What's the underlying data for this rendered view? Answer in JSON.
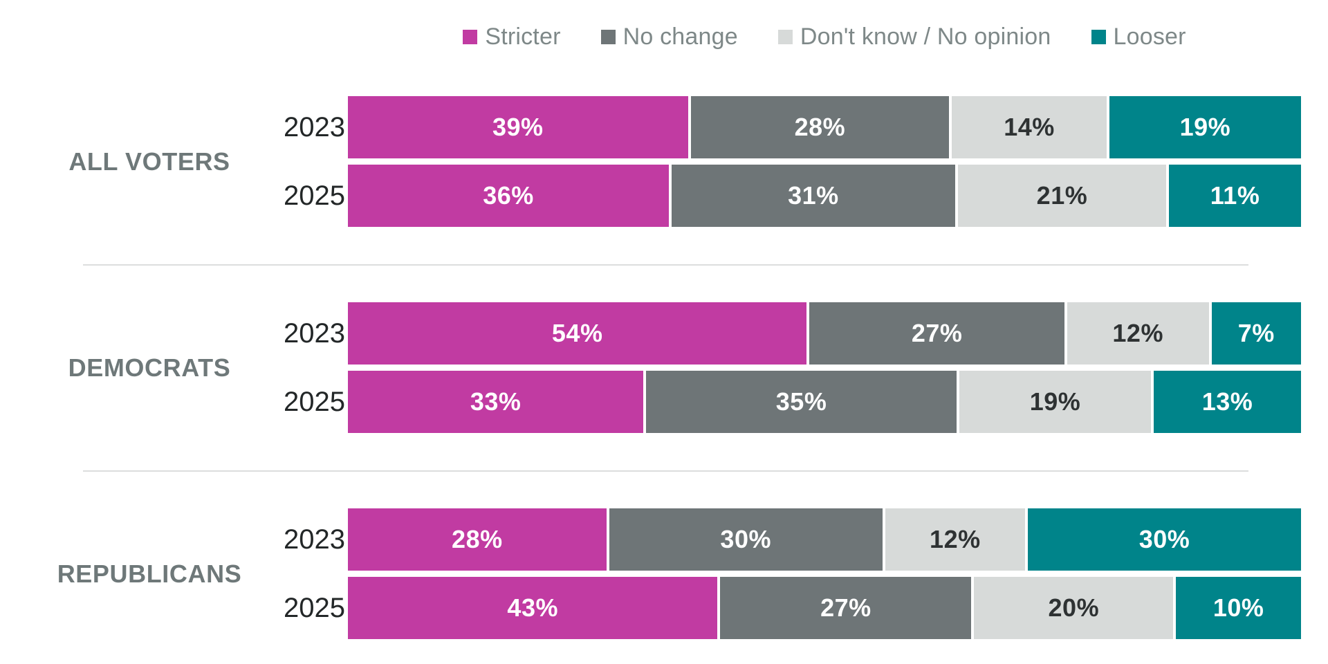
{
  "legend": {
    "items": [
      {
        "label": "Stricter",
        "color": "#c13ba2"
      },
      {
        "label": "No change",
        "color": "#6e7577"
      },
      {
        "label": "Don't know / No opinion",
        "color": "#d7dad9"
      },
      {
        "label": "Looser",
        "color": "#00848a"
      }
    ]
  },
  "chart_data": {
    "type": "bar",
    "orientation": "horizontal",
    "stacked": true,
    "unit": "percent",
    "legend_position": "top",
    "series_names": [
      "Stricter",
      "No change",
      "Don't know / No opinion",
      "Looser"
    ],
    "series_colors": [
      "#c13ba2",
      "#6e7577",
      "#d7dad9",
      "#00848a"
    ],
    "groups": [
      {
        "label": "ALL VOTERS",
        "rows": [
          {
            "year": "2023",
            "values": [
              39,
              28,
              14,
              19
            ],
            "labels": [
              "39%",
              "28%",
              "14%",
              "19%"
            ]
          },
          {
            "year": "2025",
            "values": [
              36,
              31,
              21,
              11
            ],
            "labels": [
              "36%",
              "31%",
              "21%",
              "11%"
            ]
          }
        ]
      },
      {
        "label": "DEMOCRATS",
        "rows": [
          {
            "year": "2023",
            "values": [
              54,
              27,
              12,
              7
            ],
            "labels": [
              "54%",
              "27%",
              "12%",
              "7%"
            ]
          },
          {
            "year": "2025",
            "values": [
              33,
              35,
              19,
              13
            ],
            "labels": [
              "33%",
              "35%",
              "19%",
              "13%"
            ]
          }
        ]
      },
      {
        "label": "REPUBLICANS",
        "rows": [
          {
            "year": "2023",
            "values": [
              28,
              30,
              12,
              30
            ],
            "labels": [
              "28%",
              "30%",
              "12%",
              "30%"
            ]
          },
          {
            "year": "2025",
            "values": [
              43,
              27,
              20,
              10
            ],
            "labels": [
              "43%",
              "27%",
              "20%",
              "10%"
            ]
          }
        ]
      }
    ]
  }
}
